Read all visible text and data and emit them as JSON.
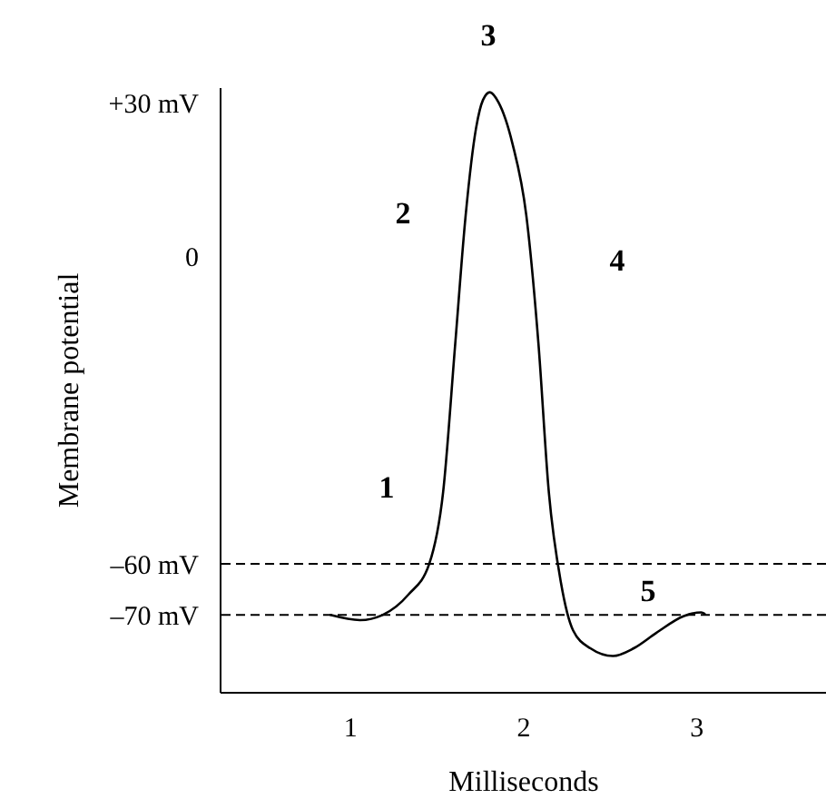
{
  "chart_data": {
    "type": "line",
    "xlabel": "Milliseconds",
    "ylabel": "Membrane potential",
    "x": [
      0.89,
      1.06,
      1.19,
      1.34,
      1.46,
      1.54,
      1.61,
      1.67,
      1.73,
      1.77,
      1.81,
      1.86,
      1.94,
      2.02,
      2.09,
      2.15,
      2.22,
      2.29,
      2.39,
      2.52,
      2.64,
      2.77,
      2.93,
      3.03,
      3.05
    ],
    "series": [
      {
        "color": "#000000",
        "values": [
          -70,
          -71,
          -70,
          -66,
          -60,
          -46,
          -17,
          8,
          25,
          30.5,
          32,
          30,
          22,
          8,
          -17,
          -46,
          -63.7,
          -73,
          -76.5,
          -78,
          -76.5,
          -73.5,
          -70.2,
          -69.5,
          -69.8
        ]
      }
    ],
    "xlim": [
      0.25,
      3.75
    ],
    "xticks": [
      1,
      2,
      3
    ],
    "ylim": [
      -85,
      33
    ],
    "yticks": [
      {
        "value": -70,
        "label": "–70 mV"
      },
      {
        "value": -60,
        "label": "–60 mV"
      },
      0,
      {
        "value": 30,
        "label": "+30 mV"
      }
    ],
    "ref_lines": [
      {
        "axis": "y",
        "value": -60,
        "color": "#000000",
        "line_style": "dashed"
      },
      {
        "axis": "y",
        "value": -70,
        "color": "#000000",
        "line_style": "dashed"
      }
    ],
    "annotations": [
      "1",
      "2",
      "3",
      "4",
      "5"
    ],
    "grid": false,
    "legend": false,
    "marker": "none",
    "line_style": "solid"
  }
}
